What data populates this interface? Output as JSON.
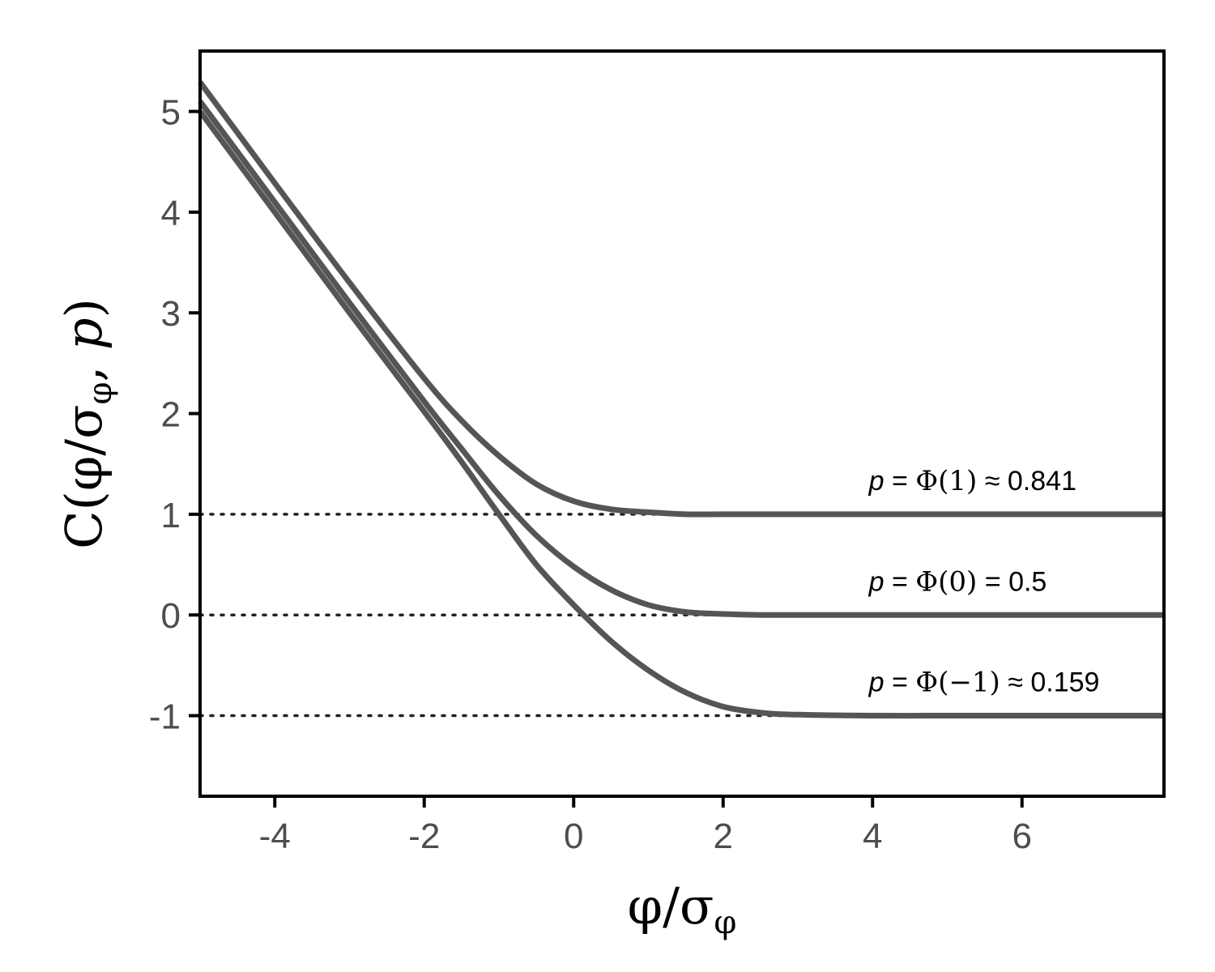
{
  "chart_data": {
    "type": "line",
    "xlabel": {
      "num": "φ",
      "slash": "/",
      "den": "σ",
      "den_sub": "φ"
    },
    "ylabel": {
      "open": "C(",
      "num": "φ",
      "slash": "/",
      "den": "σ",
      "den_sub": "φ",
      "comma": ", ",
      "p": "p",
      "close": ")"
    },
    "xlim": [
      -5,
      7.9
    ],
    "ylim": [
      -1.8,
      5.6
    ],
    "x_ticks": [
      -4,
      -2,
      0,
      2,
      4,
      6
    ],
    "x_tick_labels": [
      "-4",
      "-2",
      "0",
      "2",
      "4",
      "6"
    ],
    "y_ticks": [
      -1,
      0,
      1,
      2,
      3,
      4,
      5
    ],
    "y_tick_labels": [
      "-1",
      "0",
      "1",
      "2",
      "3",
      "4",
      "5"
    ],
    "grid": false,
    "series": [
      {
        "x": [
          -5,
          -4,
          -3,
          -2,
          -1.5,
          -1,
          -0.5,
          0,
          0.5,
          1,
          1.5,
          2,
          2.5,
          3,
          4,
          5,
          6,
          7,
          7.9
        ],
        "y": [
          5.29,
          4.29,
          3.3,
          2.35,
          1.93,
          1.58,
          1.3,
          1.13,
          1.05,
          1.02,
          1.0,
          1.0,
          1.0,
          1.0,
          1.0,
          1.0,
          1.0,
          1.0,
          1.0
        ]
      },
      {
        "x": [
          -5,
          -4,
          -3,
          -2,
          -1.5,
          -1,
          -0.5,
          0,
          0.5,
          1,
          1.5,
          2,
          2.5,
          3,
          4,
          5,
          6,
          7,
          7.9
        ],
        "y": [
          5.1,
          4.1,
          3.1,
          2.12,
          1.65,
          1.19,
          0.79,
          0.48,
          0.25,
          0.1,
          0.03,
          0.01,
          0.0,
          0.0,
          0.0,
          0.0,
          0.0,
          0.0,
          0.0
        ]
      },
      {
        "x": [
          -5,
          -4,
          -3,
          -2,
          -1.5,
          -1,
          -0.5,
          0,
          0.5,
          1,
          1.5,
          2,
          2.5,
          3,
          4,
          5,
          6,
          7,
          7.9
        ],
        "y": [
          5.0,
          4.0,
          3.0,
          2.02,
          1.52,
          1.0,
          0.5,
          0.1,
          -0.26,
          -0.55,
          -0.77,
          -0.91,
          -0.97,
          -0.99,
          -1.0,
          -1.0,
          -1.0,
          -1.0,
          -1.0
        ]
      }
    ],
    "reference_lines": [
      {
        "y": 1,
        "style": "dotted"
      },
      {
        "y": 0,
        "style": "dotted"
      },
      {
        "y": -1,
        "style": "dotted"
      }
    ],
    "annotations": [
      {
        "x": 3.95,
        "y": 1.24,
        "p": "p",
        "eq": " = ",
        "phi": "Φ",
        "arg": "(1)",
        "rel": " ≈ ",
        "value": "0.841"
      },
      {
        "x": 3.95,
        "y": 0.24,
        "p": "p",
        "eq": " = ",
        "phi": "Φ",
        "arg": "(0)",
        "rel": " = ",
        "value": "0.5"
      },
      {
        "x": 3.95,
        "y": -0.76,
        "p": "p",
        "eq": " = ",
        "phi": "Φ",
        "arg": "(−1)",
        "rel": " ≈ ",
        "value": "0.159"
      }
    ],
    "colors": {
      "line": "#555555",
      "reference": "#222222",
      "frame": "#000000",
      "tick_text": "#4d4d4d"
    }
  }
}
